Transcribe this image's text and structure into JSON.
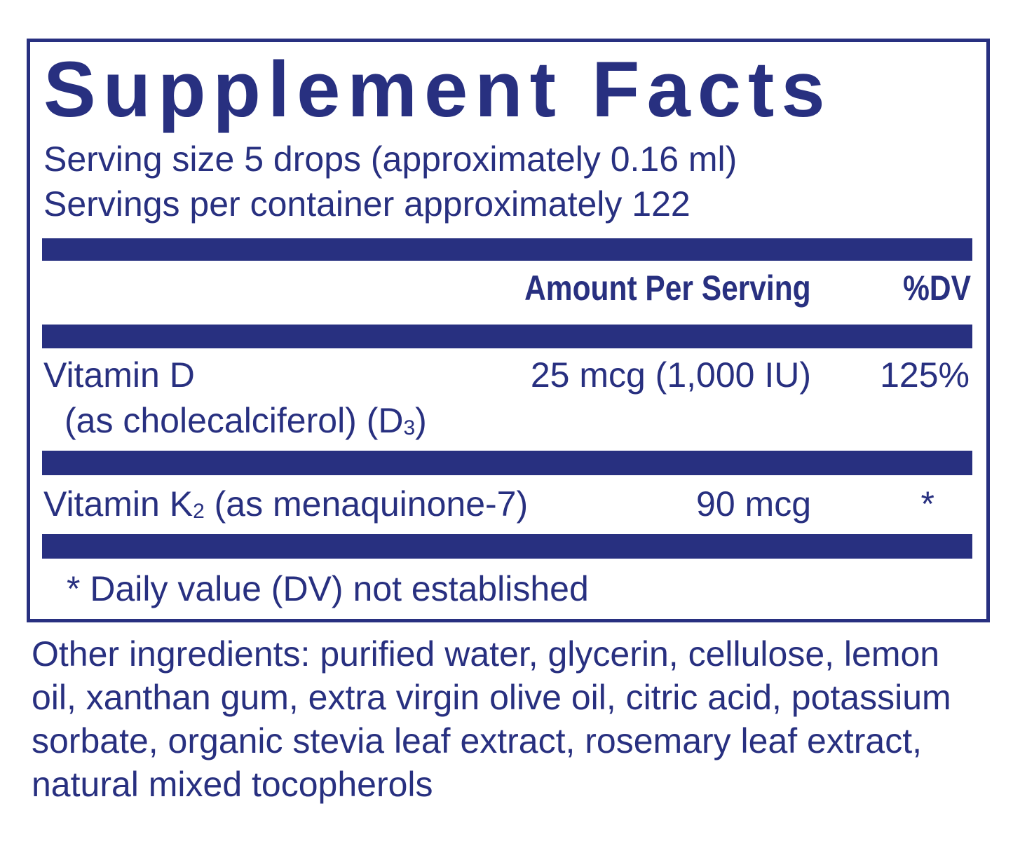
{
  "title": "Supplement Facts",
  "serving_size": "Serving size  5 drops (approximately 0.16 ml)",
  "servings_per_container": "Servings per container  approximately 122",
  "header": {
    "amount": "Amount Per Serving",
    "dv": "%DV"
  },
  "rows": [
    {
      "name": "Vitamin D",
      "detail_prefix": "(as cholecalciferol) (D",
      "detail_sub": "3",
      "detail_suffix": ")",
      "amount": "25 mcg (1,000 IU)",
      "dv": "125%"
    },
    {
      "name_prefix": "Vitamin K",
      "name_sub": "2",
      "name_suffix": " (as menaquinone-7)",
      "amount": "90 mcg",
      "dv": "*"
    }
  ],
  "footnote": "* Daily value (DV) not established",
  "other_ingredients": "Other ingredients: purified water, glycerin, cellulose, lemon oil, xanthan gum, extra virgin olive oil, citric acid, potassium sorbate, organic stevia leaf extract, rosemary leaf extract, natural mixed tocopherols",
  "colors": {
    "ink": "#283080",
    "background": "#ffffff"
  }
}
